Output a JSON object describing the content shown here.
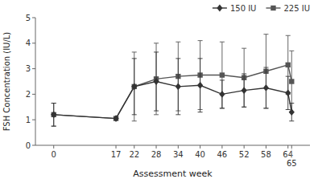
{
  "chart_data": {
    "type": "line",
    "xlabel": "Assessment week",
    "ylabel": "FSH Concentration (IU/L)",
    "x": [
      0,
      17,
      22,
      28,
      34,
      40,
      46,
      52,
      58,
      64,
      65
    ],
    "series": [
      {
        "name": "150 IU",
        "color": "#333333",
        "marker": "diamond",
        "line_style": "solid",
        "values": [
          1.2,
          1.05,
          2.3,
          2.5,
          2.3,
          2.35,
          2.0,
          2.15,
          2.25,
          2.05,
          1.3
        ],
        "error_low": [
          0.45,
          0.0,
          1.1,
          1.15,
          1.1,
          1.05,
          0.55,
          0.65,
          0.8,
          0.65,
          0.35
        ],
        "error_high": [
          0.45,
          0.0,
          1.1,
          1.15,
          1.1,
          1.05,
          0.55,
          0.65,
          0.8,
          0.65,
          0.35
        ]
      },
      {
        "name": "225 IU",
        "color": "#555555",
        "marker": "square",
        "line_style": "solid",
        "values": [
          1.2,
          1.05,
          2.3,
          2.6,
          2.7,
          2.75,
          2.75,
          2.65,
          2.9,
          3.15,
          2.5
        ],
        "error_low": [
          0.45,
          0.0,
          1.35,
          1.4,
          1.35,
          1.35,
          1.3,
          1.15,
          1.45,
          1.15,
          1.2
        ],
        "error_high": [
          0.45,
          0.0,
          1.35,
          1.4,
          1.35,
          1.35,
          1.3,
          1.15,
          1.45,
          1.15,
          1.2
        ]
      }
    ],
    "xlim": [
      -5,
      70
    ],
    "xticks": [
      0,
      17,
      22,
      28,
      34,
      40,
      46,
      52,
      58,
      64,
      65
    ],
    "ylim": [
      0,
      5
    ],
    "yticks": [
      0,
      1,
      2,
      3,
      4,
      5
    ],
    "grid": false,
    "legend": "upper right"
  }
}
